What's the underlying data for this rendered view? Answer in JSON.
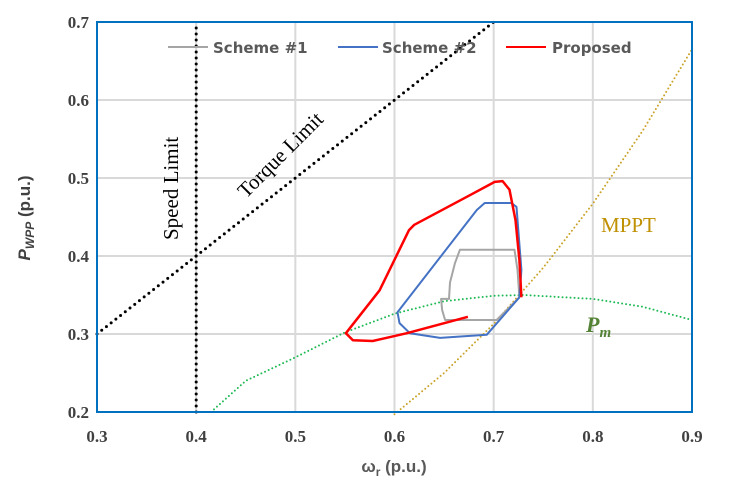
{
  "chart_data": {
    "type": "line",
    "xlabel_main": "ω",
    "xlabel_sub": "r",
    "xlabel_unit": " (p.u.)",
    "ylabel_main": "P",
    "ylabel_sub": "WPP",
    "ylabel_unit": " (p.u.)",
    "xlim": [
      0.3,
      0.9
    ],
    "ylim": [
      0.2,
      0.7
    ],
    "xticks": [
      "0.3",
      "0.4",
      "0.5",
      "0.6",
      "0.7",
      "0.8",
      "0.9"
    ],
    "yticks": [
      "0.2",
      "0.3",
      "0.4",
      "0.5",
      "0.6",
      "0.7"
    ],
    "grid": true,
    "legend_position": "top",
    "colors": {
      "frame": "#0070C0",
      "grid": "#D9D9D9",
      "scheme1": "#A5A5A5",
      "scheme2": "#4472C4",
      "proposed": "#FF0000",
      "mppt": "#C9A227",
      "pm": "#1DB954",
      "limit": "#000000",
      "pm_label": "#548235",
      "mppt_label": "#BF9000"
    },
    "series": [
      {
        "name": "Scheme #1",
        "key": "scheme1",
        "x": [
          0.726,
          0.724,
          0.721,
          0.666,
          0.661,
          0.656,
          0.655,
          0.647,
          0.648,
          0.651,
          0.703,
          0.726
        ],
        "y": [
          0.347,
          0.382,
          0.408,
          0.408,
          0.391,
          0.366,
          0.345,
          0.345,
          0.331,
          0.318,
          0.318,
          0.347
        ]
      },
      {
        "name": "Scheme #2",
        "key": "scheme2",
        "x": [
          0.726,
          0.728,
          0.723,
          0.718,
          0.691,
          0.683,
          0.603,
          0.605,
          0.6155,
          0.646,
          0.693,
          0.726
        ],
        "y": [
          0.347,
          0.382,
          0.463,
          0.468,
          0.468,
          0.459,
          0.328,
          0.314,
          0.301,
          0.295,
          0.299,
          0.347
        ]
      },
      {
        "name": "Proposed",
        "key": "proposed",
        "x": [
          0.674,
          0.6125,
          0.578,
          0.558,
          0.551,
          0.585,
          0.6145,
          0.62,
          0.676,
          0.701,
          0.709,
          0.716,
          0.722,
          0.726,
          0.728
        ],
        "y": [
          0.322,
          0.301,
          0.291,
          0.292,
          0.301,
          0.356,
          0.433,
          0.44,
          0.478,
          0.495,
          0.496,
          0.485,
          0.446,
          0.395,
          0.347
        ]
      }
    ],
    "curves": [
      {
        "name": "MPPT",
        "key": "mppt",
        "x": [
          0.6,
          0.65,
          0.7,
          0.75,
          0.8,
          0.85,
          0.9
        ],
        "y": [
          0.197,
          0.25,
          0.313,
          0.385,
          0.467,
          0.56,
          0.665
        ]
      },
      {
        "name": "Pm",
        "key": "pm",
        "x": [
          0.415,
          0.45,
          0.5,
          0.55,
          0.6,
          0.65,
          0.7,
          0.73,
          0.8,
          0.85,
          0.9
        ],
        "y": [
          0.2,
          0.24,
          0.27,
          0.302,
          0.326,
          0.342,
          0.349,
          0.35,
          0.345,
          0.335,
          0.318
        ]
      },
      {
        "name": "Speed Limit",
        "key": "limit",
        "x": [
          0.4,
          0.4
        ],
        "y": [
          0.2,
          0.7
        ]
      },
      {
        "name": "Torque Limit",
        "key": "limit",
        "x": [
          0.3,
          0.7
        ],
        "y": [
          0.3,
          0.7
        ]
      }
    ],
    "annotations": {
      "speed_limit": "Speed Limit",
      "torque_limit": "Torque Limit",
      "mppt": "MPPT",
      "pm_main": "P",
      "pm_sub": "m"
    }
  }
}
